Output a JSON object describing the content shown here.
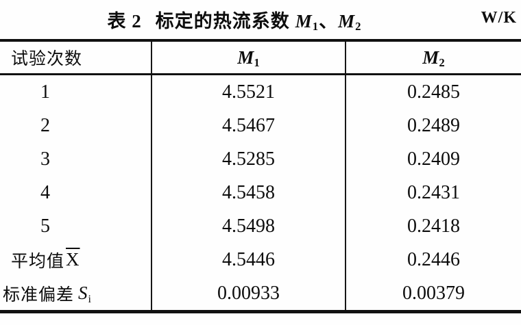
{
  "title": {
    "label": "表 2",
    "caption": "标定的热流系数",
    "symbols": {
      "m1_base": "M",
      "m1_sub": "1",
      "separator": "、",
      "m2_base": "M",
      "m2_sub": "2"
    },
    "unit": "W/K"
  },
  "table": {
    "header": {
      "col1": "试验次数",
      "m1_base": "M",
      "m1_sub": "1",
      "m2_base": "M",
      "m2_sub": "2"
    },
    "rows": [
      {
        "label": "1",
        "m1": "4.5521",
        "m2": "0.2485"
      },
      {
        "label": "2",
        "m1": "4.5467",
        "m2": "0.2489"
      },
      {
        "label": "3",
        "m1": "4.5285",
        "m2": "0.2409"
      },
      {
        "label": "4",
        "m1": "4.5458",
        "m2": "0.2431"
      },
      {
        "label": "5",
        "m1": "4.5498",
        "m2": "0.2418"
      }
    ],
    "mean_row": {
      "label": "平均值",
      "symbol": "X",
      "m1": "4.5446",
      "m2": "0.2446"
    },
    "std_row": {
      "label": "标准偏差",
      "symbol": "S",
      "symbol_sub": "i",
      "m1": "0.00933",
      "m2": "0.00379"
    }
  },
  "colors": {
    "text": "#0d0d0d",
    "rule_lines": "#111111",
    "background": "#fefefe"
  }
}
